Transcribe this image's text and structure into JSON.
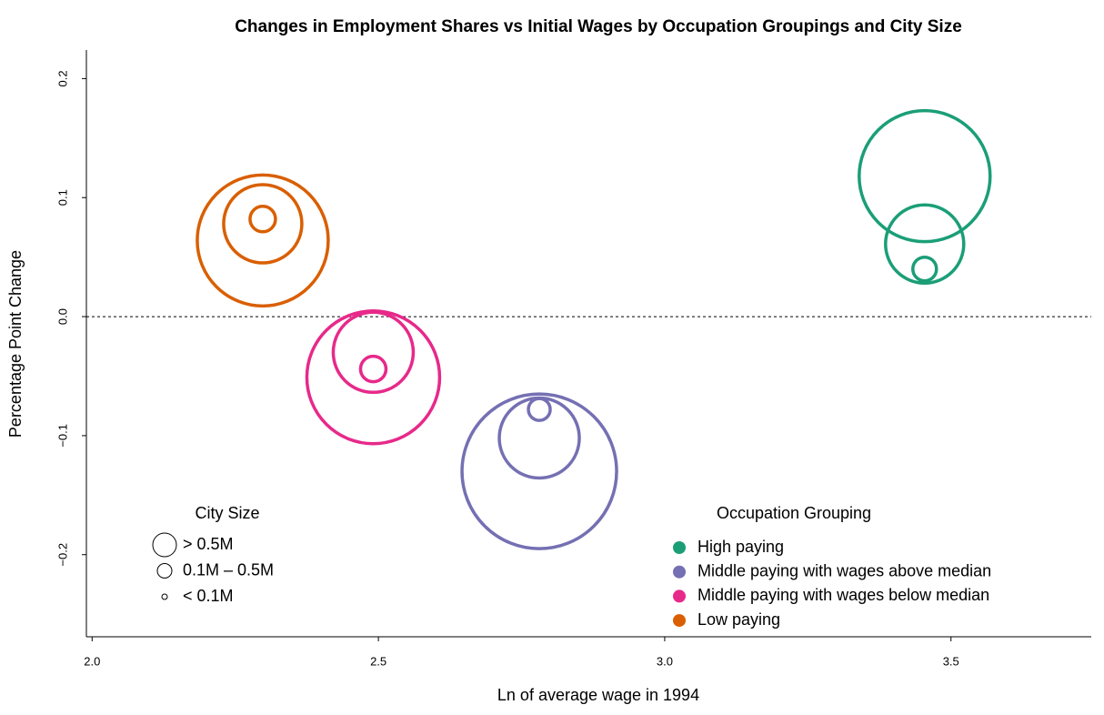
{
  "chart_data": {
    "type": "bubble",
    "title": "Changes in Employment Shares vs Initial Wages by Occupation Groupings and City Size",
    "x_label": "Ln of average wage in 1994",
    "y_label": "Percentage Point Change",
    "xlim": [
      1.99,
      3.745
    ],
    "ylim": [
      -0.269,
      0.224
    ],
    "xticks": [
      {
        "value": 2.0,
        "label": "2.0"
      },
      2.5,
      {
        "value": 3.0,
        "label": "3.0"
      },
      3.5
    ],
    "yticks": [
      {
        "value": -0.2,
        "label": "−0.2"
      },
      {
        "value": -0.1,
        "label": "−0.1"
      },
      {
        "value": 0,
        "label": "0.0"
      },
      0.1,
      0.2
    ],
    "hline": 0,
    "series": [
      {
        "name": "High paying",
        "color": "#1b9e77",
        "x": [
          3.454,
          3.454,
          3.454
        ],
        "values": [
          0.118,
          0.061,
          0.04
        ],
        "sizes": [
          0.72,
          0.43,
          0.13
        ]
      },
      {
        "name": "Middle paying with wages above median",
        "color": "#7570b3",
        "x": [
          2.781,
          2.781,
          2.781
        ],
        "values": [
          -0.13,
          -0.102,
          -0.078
        ],
        "sizes": [
          0.85,
          0.44,
          0.12
        ]
      },
      {
        "name": "Middle paying with wages below median",
        "color": "#e7298a",
        "x": [
          2.491,
          2.491,
          2.491
        ],
        "values": [
          -0.051,
          -0.03,
          -0.044
        ],
        "sizes": [
          0.73,
          0.44,
          0.14
        ]
      },
      {
        "name": "Low paying",
        "color": "#d95f02",
        "x": [
          2.298,
          2.298,
          2.298
        ],
        "values": [
          0.064,
          0.078,
          0.082
        ],
        "sizes": [
          0.72,
          0.43,
          0.14
        ]
      }
    ],
    "legend_title": "Occupation Grouping",
    "size_legend": {
      "title": "City Size",
      "labels": [
        "> 0.5M",
        "0.1M – 0.5M",
        "< 0.1M"
      ],
      "sizes": [
        0.13,
        0.08,
        0.03
      ]
    }
  }
}
